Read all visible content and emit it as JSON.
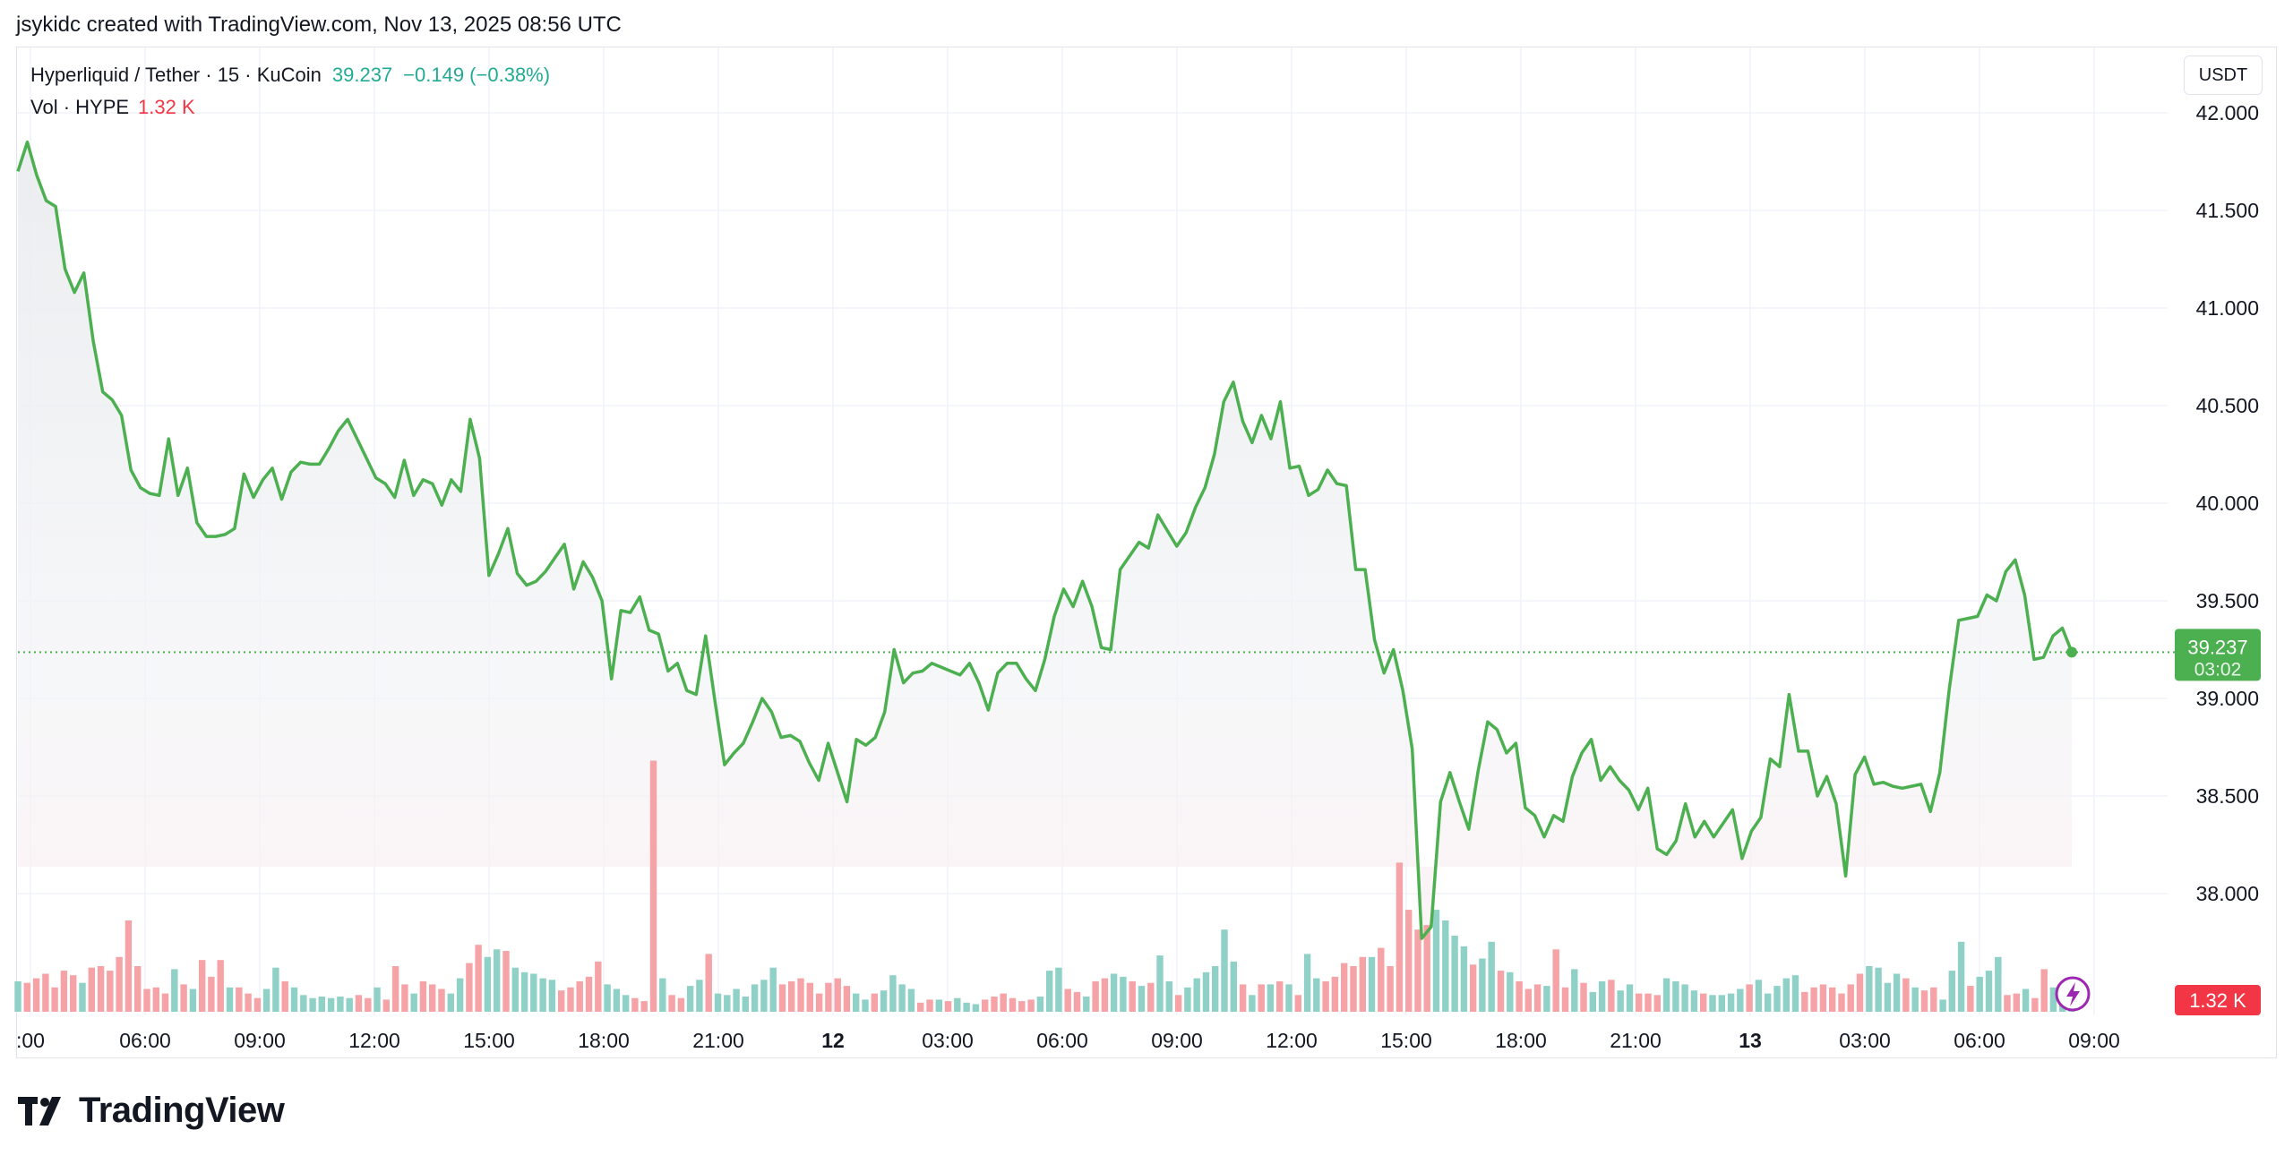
{
  "caption": "jsykidc created with TradingView.com, Nov 13, 2025 08:56 UTC",
  "legend": {
    "symbol": "Hyperliquid / Tether · 15 · KuCoin",
    "price": "39.237",
    "change": "−0.149 (−0.38%)",
    "volume_label": "Vol · HYPE",
    "volume_value": "1.32 K"
  },
  "unit_button": "USDT",
  "brand": {
    "name": "TradingView",
    "icon": "tradingview-logo-icon"
  },
  "alert_icon": "lightning-icon",
  "colors": {
    "line": "#4caf50",
    "up_volume": "#8fd1c6",
    "down_volume": "#f5a3a6",
    "price_badge": "#4caf50",
    "volume_badge": "#f23645"
  },
  "chart_data": {
    "type": "line",
    "title": "Hyperliquid / Tether · 15 · KuCoin",
    "ylabel": "USDT",
    "ylim": [
      37.45,
      42.2
    ],
    "y_ticks": [
      "42.000",
      "41.500",
      "41.000",
      "40.500",
      "40.000",
      "39.500",
      "39.000",
      "38.500",
      "38.000"
    ],
    "x_ticks": [
      {
        "label": ":00",
        "bold": false
      },
      {
        "label": "06:00",
        "bold": false
      },
      {
        "label": "09:00",
        "bold": false
      },
      {
        "label": "12:00",
        "bold": false
      },
      {
        "label": "15:00",
        "bold": false
      },
      {
        "label": "18:00",
        "bold": false
      },
      {
        "label": "21:00",
        "bold": false
      },
      {
        "label": "12",
        "bold": true
      },
      {
        "label": "03:00",
        "bold": false
      },
      {
        "label": "06:00",
        "bold": false
      },
      {
        "label": "09:00",
        "bold": false
      },
      {
        "label": "12:00",
        "bold": false
      },
      {
        "label": "15:00",
        "bold": false
      },
      {
        "label": "18:00",
        "bold": false
      },
      {
        "label": "21:00",
        "bold": false
      },
      {
        "label": "13",
        "bold": true
      },
      {
        "label": "03:00",
        "bold": false
      },
      {
        "label": "06:00",
        "bold": false
      },
      {
        "label": "09:00",
        "bold": false
      }
    ],
    "last_price": 39.237,
    "last_price_label": "39.237",
    "countdown": "03:02",
    "volume_badge": "1.32 K",
    "price_values": [
      41.7,
      41.85,
      41.68,
      41.55,
      41.52,
      41.2,
      41.08,
      41.18,
      40.83,
      40.57,
      40.53,
      40.45,
      40.17,
      40.08,
      40.05,
      40.04,
      40.33,
      40.04,
      40.18,
      39.9,
      39.83,
      39.83,
      39.84,
      39.87,
      40.15,
      40.03,
      40.12,
      40.18,
      40.02,
      40.16,
      40.21,
      40.2,
      40.2,
      40.28,
      40.37,
      40.43,
      40.33,
      40.23,
      40.13,
      40.1,
      40.03,
      40.22,
      40.04,
      40.12,
      40.1,
      39.99,
      40.12,
      40.06,
      40.43,
      40.23,
      39.63,
      39.74,
      39.87,
      39.64,
      39.58,
      39.6,
      39.65,
      39.72,
      39.79,
      39.56,
      39.7,
      39.62,
      39.5,
      39.1,
      39.45,
      39.44,
      39.52,
      39.35,
      39.33,
      39.14,
      39.18,
      39.04,
      39.02,
      39.32,
      38.98,
      38.66,
      38.72,
      38.77,
      38.88,
      39.0,
      38.93,
      38.8,
      38.81,
      38.78,
      38.67,
      38.58,
      38.77,
      38.62,
      38.47,
      38.79,
      38.76,
      38.8,
      38.93,
      39.25,
      39.08,
      39.13,
      39.14,
      39.18,
      39.16,
      39.14,
      39.12,
      39.18,
      39.08,
      38.94,
      39.13,
      39.18,
      39.18,
      39.1,
      39.04,
      39.2,
      39.42,
      39.56,
      39.47,
      39.6,
      39.47,
      39.26,
      39.25,
      39.66,
      39.73,
      39.8,
      39.77,
      39.94,
      39.86,
      39.78,
      39.85,
      39.98,
      40.08,
      40.25,
      40.52,
      40.62,
      40.42,
      40.31,
      40.45,
      40.33,
      40.52,
      40.18,
      40.19,
      40.04,
      40.07,
      40.17,
      40.1,
      40.09,
      39.66,
      39.66,
      39.3,
      39.13,
      39.25,
      39.04,
      38.74,
      37.77,
      37.83,
      38.47,
      38.62,
      38.47,
      38.33,
      38.63,
      38.88,
      38.84,
      38.72,
      38.77,
      38.44,
      38.4,
      38.29,
      38.4,
      38.37,
      38.6,
      38.72,
      38.79,
      38.58,
      38.65,
      38.58,
      38.53,
      38.43,
      38.54,
      38.23,
      38.2,
      38.27,
      38.46,
      38.29,
      38.37,
      38.29,
      38.36,
      38.43,
      38.18,
      38.32,
      38.39,
      38.69,
      38.65,
      39.02,
      38.73,
      38.73,
      38.5,
      38.6,
      38.46,
      38.09,
      38.61,
      38.7,
      38.56,
      38.57,
      38.55,
      38.54,
      38.55,
      38.56,
      38.42,
      38.62,
      39.05,
      39.4,
      39.41,
      39.42,
      39.53,
      39.5,
      39.65,
      39.71,
      39.53,
      39.2,
      39.21,
      39.32,
      39.36,
      39.237
    ],
    "volume_bars": [
      {
        "v": 0.2,
        "up": true
      },
      {
        "v": 0.19,
        "up": false
      },
      {
        "v": 0.22,
        "up": false
      },
      {
        "v": 0.25,
        "up": false
      },
      {
        "v": 0.16,
        "up": false
      },
      {
        "v": 0.27,
        "up": false
      },
      {
        "v": 0.24,
        "up": false
      },
      {
        "v": 0.19,
        "up": true
      },
      {
        "v": 0.29,
        "up": false
      },
      {
        "v": 0.3,
        "up": false
      },
      {
        "v": 0.27,
        "up": false
      },
      {
        "v": 0.36,
        "up": false
      },
      {
        "v": 0.6,
        "up": false
      },
      {
        "v": 0.3,
        "up": false
      },
      {
        "v": 0.15,
        "up": false
      },
      {
        "v": 0.16,
        "up": false
      },
      {
        "v": 0.12,
        "up": false
      },
      {
        "v": 0.28,
        "up": true
      },
      {
        "v": 0.18,
        "up": false
      },
      {
        "v": 0.15,
        "up": true
      },
      {
        "v": 0.34,
        "up": false
      },
      {
        "v": 0.23,
        "up": false
      },
      {
        "v": 0.34,
        "up": false
      },
      {
        "v": 0.16,
        "up": true
      },
      {
        "v": 0.16,
        "up": false
      },
      {
        "v": 0.12,
        "up": false
      },
      {
        "v": 0.09,
        "up": false
      },
      {
        "v": 0.15,
        "up": true
      },
      {
        "v": 0.29,
        "up": true
      },
      {
        "v": 0.2,
        "up": false
      },
      {
        "v": 0.16,
        "up": true
      },
      {
        "v": 0.11,
        "up": true
      },
      {
        "v": 0.09,
        "up": true
      },
      {
        "v": 0.1,
        "up": true
      },
      {
        "v": 0.09,
        "up": true
      },
      {
        "v": 0.1,
        "up": true
      },
      {
        "v": 0.09,
        "up": true
      },
      {
        "v": 0.11,
        "up": false
      },
      {
        "v": 0.09,
        "up": false
      },
      {
        "v": 0.16,
        "up": true
      },
      {
        "v": 0.08,
        "up": false
      },
      {
        "v": 0.3,
        "up": false
      },
      {
        "v": 0.18,
        "up": false
      },
      {
        "v": 0.12,
        "up": true
      },
      {
        "v": 0.2,
        "up": false
      },
      {
        "v": 0.18,
        "up": false
      },
      {
        "v": 0.15,
        "up": false
      },
      {
        "v": 0.12,
        "up": true
      },
      {
        "v": 0.22,
        "up": true
      },
      {
        "v": 0.32,
        "up": false
      },
      {
        "v": 0.44,
        "up": false
      },
      {
        "v": 0.36,
        "up": true
      },
      {
        "v": 0.41,
        "up": true
      },
      {
        "v": 0.4,
        "up": false
      },
      {
        "v": 0.29,
        "up": true
      },
      {
        "v": 0.26,
        "up": true
      },
      {
        "v": 0.25,
        "up": true
      },
      {
        "v": 0.22,
        "up": true
      },
      {
        "v": 0.21,
        "up": true
      },
      {
        "v": 0.14,
        "up": false
      },
      {
        "v": 0.16,
        "up": false
      },
      {
        "v": 0.2,
        "up": false
      },
      {
        "v": 0.23,
        "up": false
      },
      {
        "v": 0.33,
        "up": false
      },
      {
        "v": 0.18,
        "up": true
      },
      {
        "v": 0.15,
        "up": true
      },
      {
        "v": 0.11,
        "up": true
      },
      {
        "v": 0.09,
        "up": false
      },
      {
        "v": 0.07,
        "up": false
      },
      {
        "v": 1.65,
        "up": false
      },
      {
        "v": 0.22,
        "up": true
      },
      {
        "v": 0.11,
        "up": false
      },
      {
        "v": 0.09,
        "up": false
      },
      {
        "v": 0.17,
        "up": true
      },
      {
        "v": 0.21,
        "up": true
      },
      {
        "v": 0.38,
        "up": false
      },
      {
        "v": 0.12,
        "up": true
      },
      {
        "v": 0.11,
        "up": true
      },
      {
        "v": 0.15,
        "up": true
      },
      {
        "v": 0.1,
        "up": true
      },
      {
        "v": 0.18,
        "up": true
      },
      {
        "v": 0.21,
        "up": true
      },
      {
        "v": 0.29,
        "up": true
      },
      {
        "v": 0.18,
        "up": false
      },
      {
        "v": 0.2,
        "up": false
      },
      {
        "v": 0.22,
        "up": false
      },
      {
        "v": 0.19,
        "up": false
      },
      {
        "v": 0.12,
        "up": false
      },
      {
        "v": 0.19,
        "up": false
      },
      {
        "v": 0.22,
        "up": false
      },
      {
        "v": 0.17,
        "up": false
      },
      {
        "v": 0.12,
        "up": true
      },
      {
        "v": 0.08,
        "up": true
      },
      {
        "v": 0.12,
        "up": false
      },
      {
        "v": 0.14,
        "up": true
      },
      {
        "v": 0.24,
        "up": true
      },
      {
        "v": 0.18,
        "up": true
      },
      {
        "v": 0.15,
        "up": true
      },
      {
        "v": 0.06,
        "up": false
      },
      {
        "v": 0.08,
        "up": false
      },
      {
        "v": 0.08,
        "up": true
      },
      {
        "v": 0.07,
        "up": false
      },
      {
        "v": 0.09,
        "up": true
      },
      {
        "v": 0.06,
        "up": true
      },
      {
        "v": 0.05,
        "up": true
      },
      {
        "v": 0.08,
        "up": false
      },
      {
        "v": 0.1,
        "up": false
      },
      {
        "v": 0.12,
        "up": false
      },
      {
        "v": 0.09,
        "up": false
      },
      {
        "v": 0.07,
        "up": false
      },
      {
        "v": 0.08,
        "up": false
      },
      {
        "v": 0.1,
        "up": true
      },
      {
        "v": 0.27,
        "up": true
      },
      {
        "v": 0.29,
        "up": true
      },
      {
        "v": 0.15,
        "up": false
      },
      {
        "v": 0.13,
        "up": false
      },
      {
        "v": 0.1,
        "up": true
      },
      {
        "v": 0.2,
        "up": false
      },
      {
        "v": 0.22,
        "up": false
      },
      {
        "v": 0.25,
        "up": true
      },
      {
        "v": 0.23,
        "up": true
      },
      {
        "v": 0.2,
        "up": false
      },
      {
        "v": 0.17,
        "up": true
      },
      {
        "v": 0.19,
        "up": false
      },
      {
        "v": 0.37,
        "up": true
      },
      {
        "v": 0.2,
        "up": true
      },
      {
        "v": 0.11,
        "up": false
      },
      {
        "v": 0.16,
        "up": true
      },
      {
        "v": 0.22,
        "up": true
      },
      {
        "v": 0.26,
        "up": true
      },
      {
        "v": 0.3,
        "up": true
      },
      {
        "v": 0.54,
        "up": true
      },
      {
        "v": 0.33,
        "up": true
      },
      {
        "v": 0.18,
        "up": false
      },
      {
        "v": 0.11,
        "up": true
      },
      {
        "v": 0.18,
        "up": false
      },
      {
        "v": 0.18,
        "up": true
      },
      {
        "v": 0.2,
        "up": false
      },
      {
        "v": 0.18,
        "up": true
      },
      {
        "v": 0.11,
        "up": false
      },
      {
        "v": 0.38,
        "up": true
      },
      {
        "v": 0.22,
        "up": true
      },
      {
        "v": 0.2,
        "up": false
      },
      {
        "v": 0.23,
        "up": false
      },
      {
        "v": 0.32,
        "up": false
      },
      {
        "v": 0.3,
        "up": false
      },
      {
        "v": 0.36,
        "up": false
      },
      {
        "v": 0.36,
        "up": true
      },
      {
        "v": 0.42,
        "up": false
      },
      {
        "v": 0.3,
        "up": false
      },
      {
        "v": 0.98,
        "up": false
      },
      {
        "v": 0.67,
        "up": false
      },
      {
        "v": 0.54,
        "up": false
      },
      {
        "v": 0.57,
        "up": false
      },
      {
        "v": 0.67,
        "up": true
      },
      {
        "v": 0.6,
        "up": true
      },
      {
        "v": 0.5,
        "up": true
      },
      {
        "v": 0.43,
        "up": true
      },
      {
        "v": 0.31,
        "up": false
      },
      {
        "v": 0.35,
        "up": true
      },
      {
        "v": 0.46,
        "up": true
      },
      {
        "v": 0.27,
        "up": false
      },
      {
        "v": 0.26,
        "up": true
      },
      {
        "v": 0.2,
        "up": false
      },
      {
        "v": 0.15,
        "up": false
      },
      {
        "v": 0.18,
        "up": false
      },
      {
        "v": 0.17,
        "up": true
      },
      {
        "v": 0.41,
        "up": false
      },
      {
        "v": 0.16,
        "up": false
      },
      {
        "v": 0.28,
        "up": true
      },
      {
        "v": 0.19,
        "up": false
      },
      {
        "v": 0.13,
        "up": true
      },
      {
        "v": 0.2,
        "up": true
      },
      {
        "v": 0.21,
        "up": false
      },
      {
        "v": 0.14,
        "up": true
      },
      {
        "v": 0.18,
        "up": true
      },
      {
        "v": 0.12,
        "up": false
      },
      {
        "v": 0.12,
        "up": false
      },
      {
        "v": 0.11,
        "up": false
      },
      {
        "v": 0.22,
        "up": true
      },
      {
        "v": 0.2,
        "up": true
      },
      {
        "v": 0.18,
        "up": true
      },
      {
        "v": 0.14,
        "up": true
      },
      {
        "v": 0.12,
        "up": false
      },
      {
        "v": 0.11,
        "up": true
      },
      {
        "v": 0.11,
        "up": true
      },
      {
        "v": 0.12,
        "up": true
      },
      {
        "v": 0.15,
        "up": true
      },
      {
        "v": 0.18,
        "up": false
      },
      {
        "v": 0.21,
        "up": true
      },
      {
        "v": 0.12,
        "up": true
      },
      {
        "v": 0.17,
        "up": true
      },
      {
        "v": 0.22,
        "up": true
      },
      {
        "v": 0.24,
        "up": true
      },
      {
        "v": 0.13,
        "up": false
      },
      {
        "v": 0.16,
        "up": false
      },
      {
        "v": 0.18,
        "up": false
      },
      {
        "v": 0.16,
        "up": false
      },
      {
        "v": 0.12,
        "up": false
      },
      {
        "v": 0.18,
        "up": false
      },
      {
        "v": 0.25,
        "up": false
      },
      {
        "v": 0.3,
        "up": true
      },
      {
        "v": 0.29,
        "up": true
      },
      {
        "v": 0.19,
        "up": true
      },
      {
        "v": 0.25,
        "up": true
      },
      {
        "v": 0.22,
        "up": false
      },
      {
        "v": 0.16,
        "up": true
      },
      {
        "v": 0.14,
        "up": false
      },
      {
        "v": 0.16,
        "up": false
      },
      {
        "v": 0.08,
        "up": true
      },
      {
        "v": 0.27,
        "up": true
      },
      {
        "v": 0.46,
        "up": true
      },
      {
        "v": 0.17,
        "up": false
      },
      {
        "v": 0.23,
        "up": true
      },
      {
        "v": 0.27,
        "up": true
      },
      {
        "v": 0.36,
        "up": true
      },
      {
        "v": 0.11,
        "up": false
      },
      {
        "v": 0.12,
        "up": false
      },
      {
        "v": 0.15,
        "up": true
      },
      {
        "v": 0.09,
        "up": false
      },
      {
        "v": 0.28,
        "up": false
      },
      {
        "v": 0.16,
        "up": true
      },
      {
        "v": 0.13,
        "up": true
      },
      {
        "v": 0.12,
        "up": true
      }
    ]
  }
}
